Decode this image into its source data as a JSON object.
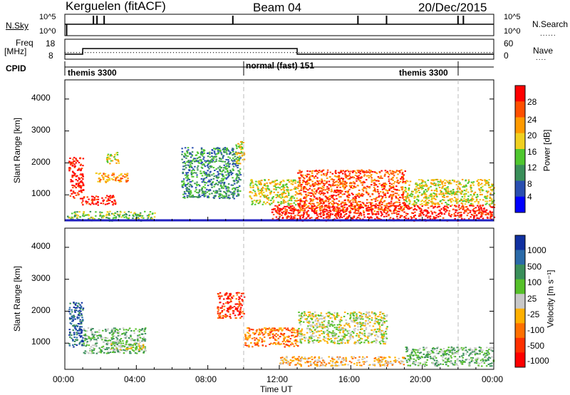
{
  "header": {
    "station": "Kerguelen (fitACF)",
    "beam": "Beam 04",
    "date": "20/Dec/2015"
  },
  "status_panels": {
    "nsky": {
      "label": "N.Sky",
      "ticks": [
        "10^5",
        "10^0"
      ]
    },
    "nsearch": {
      "label": "N.Search",
      "ticks": [
        "10^5",
        "10^0"
      ]
    },
    "freq": {
      "label_top": "Freq",
      "label_unit": "[MHz]",
      "ticks": [
        "18",
        "8"
      ]
    },
    "nave": {
      "label": "Nave",
      "ticks": [
        "60",
        "0"
      ]
    },
    "cpid": {
      "label": "CPID",
      "segments": [
        "themis 3300",
        "normal (fast) 151",
        "themis 3300"
      ]
    }
  },
  "power_panel": {
    "y_label": "Slant Range [km]",
    "colorbar_label": "Power [dB]",
    "colorbar_ticks": [
      "28",
      "24",
      "20",
      "16",
      "12",
      "8",
      "4"
    ],
    "colors": [
      "#0000ff",
      "#2a4fb0",
      "#3a8f5a",
      "#4fc72f",
      "#f0d020",
      "#ff9a00",
      "#ff5000",
      "#ff0000"
    ]
  },
  "velocity_panel": {
    "y_label": "Slant Range [km]",
    "colorbar_label": "Velocity [m s⁻¹]",
    "colorbar_ticks": [
      "1000",
      "500",
      "100",
      "25",
      "-25",
      "-100",
      "-500",
      "-1000"
    ],
    "colors": [
      "#1030a0",
      "#2a6aa8",
      "#3a8f5a",
      "#56c02a",
      "#c8c8c8",
      "#ffb000",
      "#ff7000",
      "#ff3000",
      "#ff0000"
    ]
  },
  "x_axis": {
    "label": "Time UT",
    "ticks": [
      "00:00",
      "04:00",
      "08:00",
      "12:00",
      "16:00",
      "20:00",
      "00:00"
    ]
  },
  "y_axis": {
    "ticks": [
      "1000",
      "2000",
      "3000",
      "4000"
    ]
  },
  "chart_data": {
    "type": "heatmap",
    "title": "Kerguelen (fitACF) Beam 04 20/Dec/2015",
    "xlabel": "Time UT",
    "ylabel": "Slant Range [km]",
    "xlim_hours": [
      0,
      24
    ],
    "ylim_km": [
      180,
      4600
    ],
    "mode_change_times_hours": [
      10,
      22
    ],
    "cpid_segments": [
      {
        "name": "themis 3300",
        "start": 0,
        "end": 10
      },
      {
        "name": "normal (fast) 151",
        "start": 10,
        "end": 22
      },
      {
        "name": "themis 3300",
        "start": 22,
        "end": 24
      }
    ],
    "frequency_mhz": [
      {
        "start": 0,
        "end": 1,
        "value": 10.5
      },
      {
        "start": 1,
        "end": 13,
        "value": 13.3
      },
      {
        "start": 13,
        "end": 24,
        "value": 10.5
      }
    ],
    "nave_approx": 20,
    "power_regions": [
      {
        "t0": 0.2,
        "t1": 1.0,
        "r0": 900,
        "r1": 2200,
        "level": 7
      },
      {
        "t0": 0.9,
        "t1": 2.8,
        "r0": 700,
        "r1": 1000,
        "level": 7
      },
      {
        "t0": 1.7,
        "t1": 3.6,
        "r0": 1400,
        "r1": 1700,
        "level": 5
      },
      {
        "t0": 2.3,
        "t1": 3.0,
        "r0": 2000,
        "r1": 2350,
        "level": 4
      },
      {
        "t0": 0.1,
        "t1": 5.0,
        "r0": 200,
        "r1": 500,
        "level": 3
      },
      {
        "t0": 6.5,
        "t1": 9.8,
        "r0": 900,
        "r1": 2500,
        "level": 2
      },
      {
        "t0": 9.5,
        "t1": 10.0,
        "r0": 2000,
        "r1": 2700,
        "level": 4
      },
      {
        "t0": 10.3,
        "t1": 13.0,
        "r0": 700,
        "r1": 1500,
        "level": 4
      },
      {
        "t0": 11.5,
        "t1": 24.0,
        "r0": 200,
        "r1": 700,
        "level": 7
      },
      {
        "t0": 13.0,
        "t1": 19.0,
        "r0": 500,
        "r1": 1800,
        "level": 6
      },
      {
        "t0": 19.0,
        "t1": 24.0,
        "r0": 700,
        "r1": 1500,
        "level": 4
      }
    ],
    "velocity_regions": [
      {
        "t0": 0.2,
        "t1": 1.0,
        "r0": 900,
        "r1": 2300,
        "level": 1
      },
      {
        "t0": 1.0,
        "t1": 4.5,
        "r0": 700,
        "r1": 1500,
        "level": 3
      },
      {
        "t0": 2.5,
        "t1": 4.5,
        "r0": 800,
        "r1": 1000,
        "level": 4
      },
      {
        "t0": 8.5,
        "t1": 10.0,
        "r0": 1800,
        "r1": 2600,
        "level": 7
      },
      {
        "t0": 10.0,
        "t1": 13.0,
        "r0": 900,
        "r1": 1500,
        "level": 6
      },
      {
        "t0": 12.0,
        "t1": 19.0,
        "r0": 300,
        "r1": 600,
        "level": 5
      },
      {
        "t0": 13.0,
        "t1": 18.0,
        "r0": 1000,
        "r1": 2000,
        "level": 4
      },
      {
        "t0": 19.0,
        "t1": 24.0,
        "r0": 300,
        "r1": 900,
        "level": 3
      }
    ]
  }
}
